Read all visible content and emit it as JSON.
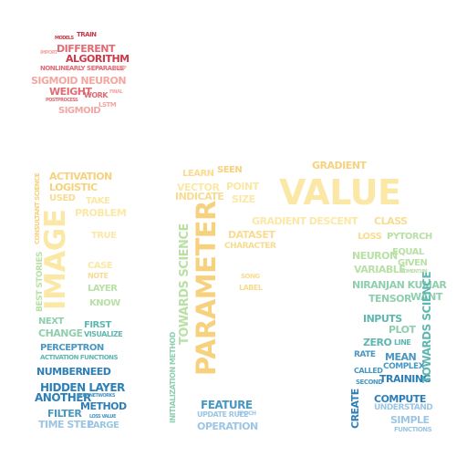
{
  "cloud": {
    "top": [
      "TRAIN",
      "MODELS",
      "DIFFERENT",
      "IMPORT",
      "ALGORITHM",
      "NONLINEARLY SEPARABLE",
      "HELP",
      "SIGMOID NEURON",
      "WEIGHT",
      "WORK",
      "FINAL",
      "LSTM",
      "SIGMOID",
      "POSTPROCESS"
    ],
    "left": [
      "ACTIVATION",
      "LOGISTIC",
      "USED",
      "TAKE",
      "PROBLEM",
      "CONSULTANT SCIENCE",
      "IMAGE",
      "TRUE",
      "CASE",
      "NOTE",
      "LAYER",
      "KNOW",
      "BEST STORIES",
      "NEXT",
      "CHANGE",
      "FIRST",
      "VISUALIZE",
      "PERCEPTRON",
      "ACTIVATION FUNCTIONS",
      "NUMBER",
      "NEED",
      "HIDDEN LAYER",
      "ANOTHER",
      "DEEP NETWORKS",
      "FILTER",
      "METHOD",
      "TIME STEP",
      "LARGE",
      "LOSS VALUE"
    ],
    "middle": [
      "LEARN",
      "SEEN",
      "VECTOR",
      "POINT",
      "INDICATE",
      "SIZE",
      "PARAMETER",
      "DATASET",
      "CHARACTER",
      "SONG",
      "LABEL",
      "TOWARDS SCIENCE",
      "INITIALIZATION METHOD",
      "FEATURE",
      "UPDATE RULE",
      "EPOCH",
      "OPERATION"
    ],
    "right": [
      "GRADIENT",
      "VALUE",
      "GRADIENT DESCENT",
      "CLASS",
      "LOSS",
      "PYTORCH",
      "NEURON",
      "EQUAL",
      "GIVEN",
      "VARIABLE",
      "MOMENTUM",
      "NIRANJAN KUMAR",
      "TENSOR",
      "WANT",
      "INPUTS",
      "PLOT",
      "ZERO",
      "LINE",
      "RATE",
      "MEAN",
      "COMPLEX",
      "CALLED",
      "SECOND",
      "TRAINING",
      "CREATE",
      "COMPUTE",
      "UNDERSTAND",
      "SIMPLE",
      "FUNCTIONS",
      "TOWARDS SCIENCE"
    ]
  }
}
